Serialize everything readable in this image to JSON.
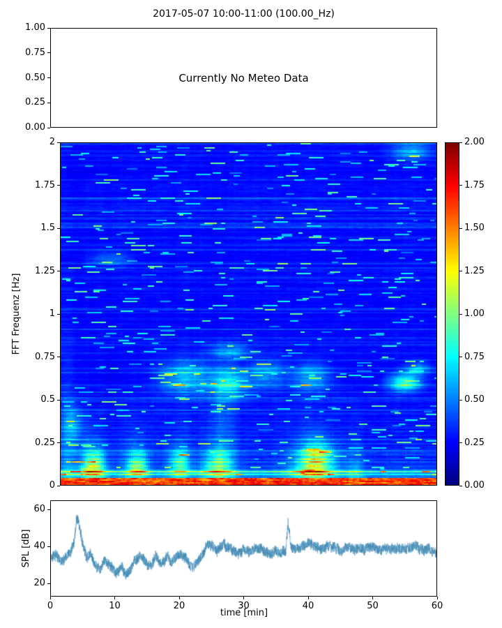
{
  "title": "2017-05-07 10:00-11:00 (100.00_Hz)",
  "chart_data": [
    {
      "type": "empty",
      "panel": "meteo",
      "annotation": "Currently No Meteo Data",
      "ylim": [
        0.0,
        1.0
      ],
      "yticks": [
        "1.00",
        "0.75",
        "0.50",
        "0.25",
        "0.00"
      ]
    },
    {
      "type": "heatmap",
      "panel": "spectrogram",
      "ylabel": "FFT Frequenz [Hz]",
      "xlim": [
        0,
        60
      ],
      "ylim": [
        0,
        2
      ],
      "yticks": [
        "2",
        "1.75",
        "1.5",
        "1.25",
        "1",
        "0.75",
        "0.5",
        "0.25",
        "0"
      ],
      "colormap": "jet",
      "vmin": 0.0,
      "vmax": 2.0,
      "colorbar_ticks": [
        "2.00",
        "1.75",
        "1.50",
        "1.25",
        "1.00",
        "0.75",
        "0.50",
        "0.25",
        "0.00"
      ],
      "features": {
        "bottom_band_hz": 0.04,
        "burst_times_min": [
          5,
          12,
          19,
          25,
          40,
          47
        ],
        "burst_amps": [
          1.0,
          0.8,
          0.7,
          0.9,
          1.1,
          0.5
        ],
        "burst_widths_min": [
          2.5,
          2.0,
          2.0,
          2.5,
          3.5,
          1.5
        ],
        "patches": [
          {
            "f": 0.63,
            "fw": 0.1,
            "t": 20,
            "tw": 4.0,
            "amp": 0.45
          },
          {
            "f": 0.6,
            "fw": 0.08,
            "t": 27,
            "tw": 3.0,
            "amp": 0.5
          },
          {
            "f": 0.65,
            "fw": 0.08,
            "t": 33,
            "tw": 3.0,
            "amp": 0.35
          },
          {
            "f": 0.63,
            "fw": 0.08,
            "t": 40,
            "tw": 3.0,
            "amp": 0.4
          },
          {
            "f": 0.78,
            "fw": 0.04,
            "t": 27,
            "tw": 3.0,
            "amp": 0.35
          },
          {
            "f": 0.6,
            "fw": 0.05,
            "t": 55,
            "tw": 2.5,
            "amp": 0.7
          },
          {
            "f": 0.68,
            "fw": 0.04,
            "t": 57,
            "tw": 2.0,
            "amp": 0.35
          },
          {
            "f": 1.32,
            "fw": 0.04,
            "t": 8,
            "tw": 3.0,
            "amp": 0.3
          },
          {
            "f": 1.95,
            "fw": 0.05,
            "t": 56,
            "tw": 3.0,
            "amp": 0.35
          },
          {
            "f": 0.15,
            "fw": 0.1,
            "t": 41,
            "tw": 2.5,
            "amp": 0.6
          },
          {
            "f": 0.12,
            "fw": 0.08,
            "t": 5.5,
            "tw": 1.5,
            "amp": 0.5
          },
          {
            "f": 0.12,
            "fw": 0.07,
            "t": 12.5,
            "tw": 1.5,
            "amp": 0.45
          },
          {
            "f": 0.14,
            "fw": 0.07,
            "t": 19,
            "tw": 1.5,
            "amp": 0.35
          },
          {
            "f": 0.13,
            "fw": 0.08,
            "t": 25.5,
            "tw": 2.0,
            "amp": 0.4
          },
          {
            "f": 0.45,
            "fw": 0.3,
            "t": 26,
            "tw": 2.0,
            "amp": 0.15
          },
          {
            "f": 0.35,
            "fw": 0.1,
            "t": 2,
            "tw": 1.5,
            "amp": 0.3
          }
        ]
      }
    },
    {
      "type": "line",
      "panel": "spl",
      "ylabel": "SPL [dB]",
      "xlabel": "time [min]",
      "xlim": [
        0,
        60
      ],
      "ylim": [
        13,
        65
      ],
      "yticks": [
        "20",
        "40",
        "60"
      ],
      "xticks": [
        "0",
        "10",
        "20",
        "30",
        "40",
        "50",
        "60"
      ],
      "line_color": "#3f88b4",
      "noise_db": 2.8,
      "envelope_t_min": [
        0,
        0.7,
        1.5,
        2.2,
        3,
        3.6,
        4,
        4.4,
        5,
        5.6,
        6.2,
        7,
        7.6,
        8.4,
        9,
        9.6,
        10.2,
        11,
        11.6,
        12.2,
        13,
        14,
        15,
        15.6,
        16.4,
        17.2,
        18,
        18.8,
        19.6,
        20.4,
        21.2,
        22,
        22.6,
        23.4,
        24.2,
        25,
        26,
        26.8,
        27.6,
        28.4,
        29.2,
        30,
        31,
        32,
        33,
        34,
        35,
        36,
        36.6,
        36.9,
        37.4,
        38,
        39,
        40,
        41,
        42,
        43,
        44,
        45,
        46,
        47,
        48,
        49,
        50,
        51,
        52,
        53,
        54,
        55,
        56,
        57,
        58,
        59,
        60
      ],
      "envelope_db": [
        33,
        35,
        32,
        34,
        36,
        42,
        57,
        52,
        40,
        34,
        36,
        29,
        27,
        33,
        30,
        28,
        25,
        28,
        25,
        26,
        32,
        35,
        31,
        29,
        34,
        31,
        34,
        32,
        35,
        36,
        33,
        28,
        30,
        35,
        40,
        41,
        38,
        42,
        40,
        38,
        36,
        38,
        37,
        39,
        38,
        36,
        38,
        37,
        38,
        53,
        39,
        38,
        40,
        42,
        41,
        39,
        40,
        39,
        37,
        40,
        38,
        39,
        38,
        40,
        38,
        39,
        38,
        40,
        38,
        39,
        40,
        38,
        39,
        36
      ]
    }
  ]
}
